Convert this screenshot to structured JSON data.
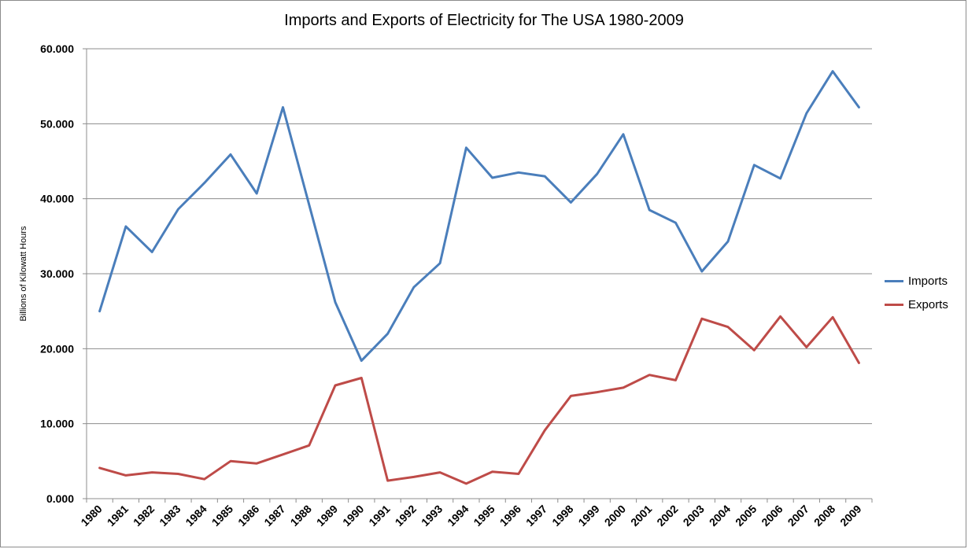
{
  "chart_data": {
    "type": "line",
    "title": "Imports and Exports of Electricity for The USA 1980-2009",
    "xlabel": "",
    "ylabel": "Billions of Kilowatt Hours",
    "ylim": [
      0,
      60
    ],
    "y_ticks": [
      "0.000",
      "10.000",
      "20.000",
      "30.000",
      "40.000",
      "50.000",
      "60.000"
    ],
    "grid": true,
    "legend_position": "right",
    "categories": [
      "1980",
      "1981",
      "1982",
      "1983",
      "1984",
      "1985",
      "1986",
      "1987",
      "1988",
      "1989",
      "1990",
      "1991",
      "1992",
      "1993",
      "1994",
      "1995",
      "1996",
      "1997",
      "1998",
      "1999",
      "2000",
      "2001",
      "2002",
      "2003",
      "2004",
      "2005",
      "2006",
      "2007",
      "2008",
      "2009"
    ],
    "series": [
      {
        "name": "Imports",
        "color": "#4a7ebb",
        "values": [
          25.0,
          36.3,
          32.9,
          38.6,
          42.1,
          45.9,
          40.7,
          52.2,
          39.2,
          26.2,
          18.4,
          22.0,
          28.2,
          31.4,
          46.8,
          42.8,
          43.5,
          43.0,
          39.5,
          43.3,
          48.6,
          38.5,
          36.8,
          30.3,
          34.3,
          44.5,
          42.7,
          51.4,
          57.0,
          52.2
        ]
      },
      {
        "name": "Exports",
        "color": "#be4b48",
        "values": [
          4.1,
          3.1,
          3.5,
          3.3,
          2.6,
          5.0,
          4.7,
          5.9,
          7.1,
          15.1,
          16.1,
          2.4,
          2.9,
          3.5,
          2.0,
          3.6,
          3.3,
          9.1,
          13.7,
          14.2,
          14.8,
          16.5,
          15.8,
          24.0,
          22.9,
          19.8,
          24.3,
          20.2,
          24.2,
          18.1
        ]
      }
    ]
  }
}
